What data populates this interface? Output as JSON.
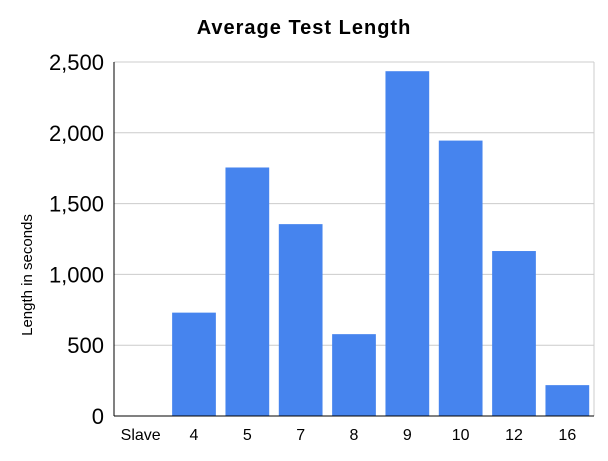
{
  "chart_data": {
    "type": "bar",
    "title": "Average Test Length",
    "xlabel": "",
    "ylabel": "Length in seconds",
    "categories": [
      "Slave",
      "4",
      "5",
      "7",
      "8",
      "9",
      "10",
      "12",
      "16"
    ],
    "series": [
      {
        "values": [
          0,
          730,
          1755,
          1355,
          578,
          2435,
          1945,
          1165,
          218
        ]
      }
    ],
    "ylim": [
      0,
      2500
    ],
    "yticks": [
      "0",
      "500",
      "1,000",
      "1,500",
      "2,000",
      "2,500"
    ],
    "ytick_values": [
      0,
      500,
      1000,
      1500,
      2000,
      2500
    ],
    "grid": true,
    "legend": "none",
    "bar_color": "#4684ee",
    "grid_color": "#cccccc",
    "axis_color": "#000000"
  }
}
